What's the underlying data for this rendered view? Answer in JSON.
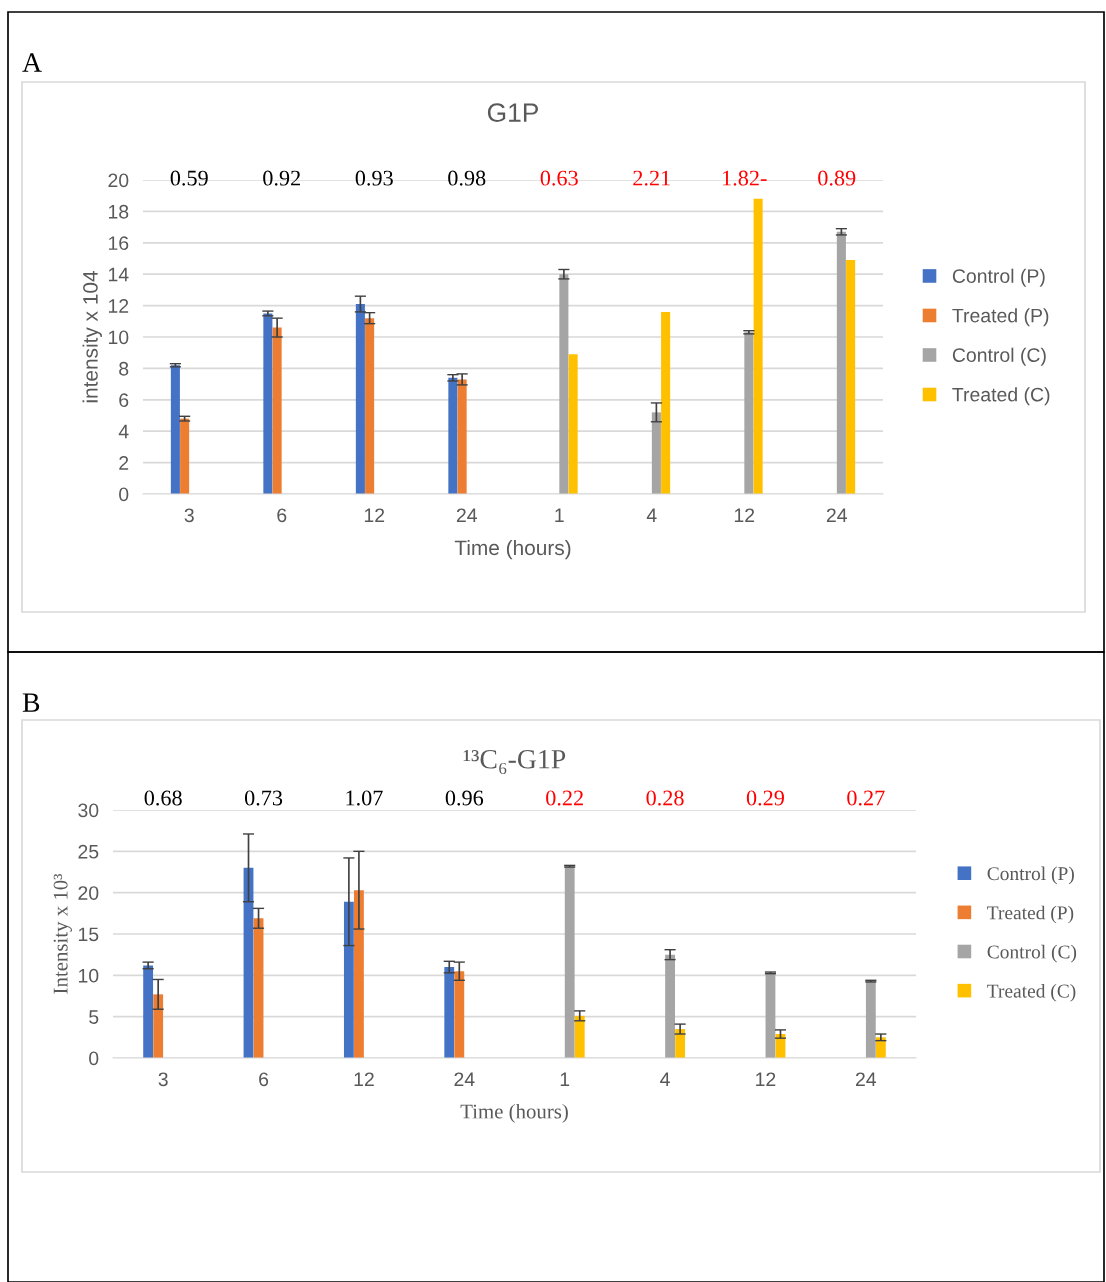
{
  "chart_data": [
    {
      "type": "bar",
      "title": "G1P",
      "xlabel": "Time (hours)",
      "ylabel": "intensity x 104",
      "annotations": [
        "A",
        "0.59",
        "0.92",
        "0.93",
        "0.98",
        "0.63",
        "2.21",
        "1.82-",
        "0.89"
      ],
      "categories": [
        "3",
        "6",
        "12",
        "24",
        "1",
        "4",
        "12",
        "24"
      ],
      "series": [
        {
          "name": "Control (P)",
          "color": "#4472c4",
          "values": [
            8.2,
            11.5,
            12.1,
            7.4,
            null,
            null,
            null,
            null
          ],
          "errors": [
            0.1,
            0.15,
            0.5,
            0.2,
            null,
            null,
            null,
            null
          ]
        },
        {
          "name": "Treated (P)",
          "color": "#ed7d31",
          "values": [
            4.8,
            10.6,
            11.2,
            7.3,
            null,
            null,
            null,
            null
          ],
          "errors": [
            0.15,
            0.6,
            0.35,
            0.35,
            null,
            null,
            null,
            null
          ]
        },
        {
          "name": "Control (C)",
          "color": "#a5a5a5",
          "values": [
            null,
            null,
            null,
            null,
            14.0,
            5.2,
            10.3,
            16.7
          ],
          "errors": [
            null,
            null,
            null,
            null,
            0.3,
            0.6,
            0.1,
            0.2
          ]
        },
        {
          "name": "Treated (C)",
          "color": "#ffc000",
          "values": [
            null,
            null,
            null,
            null,
            8.9,
            11.6,
            18.8,
            14.9
          ]
        }
      ],
      "ylim": [
        0,
        20
      ],
      "yticks": [
        0,
        2,
        4,
        6,
        8,
        10,
        12,
        14,
        16,
        18,
        20
      ],
      "grid": "y",
      "legend": "right"
    },
    {
      "type": "bar",
      "title": "¹³C₆-G1P",
      "xlabel": "Time (hours)",
      "ylabel": "Intensity x 10³",
      "annotations": [
        "B",
        "0.68",
        "0.73",
        "1.07",
        "0.96",
        "0.22",
        "0.28",
        "0.29",
        "0.27"
      ],
      "categories": [
        "3",
        "6",
        "12",
        "24",
        "1",
        "4",
        "12",
        "24"
      ],
      "series": [
        {
          "name": "Control (P)",
          "color": "#4472c4",
          "values": [
            11.2,
            23.0,
            18.9,
            11.0,
            null,
            null,
            null,
            null
          ],
          "errors": [
            0.4,
            4.1,
            5.3,
            0.7,
            null,
            null,
            null,
            null
          ]
        },
        {
          "name": "Treated (P)",
          "color": "#ed7d31",
          "values": [
            7.7,
            16.9,
            20.3,
            10.5,
            null,
            null,
            null,
            null
          ],
          "errors": [
            1.8,
            1.2,
            4.7,
            1.1,
            null,
            null,
            null,
            null
          ]
        },
        {
          "name": "Control (C)",
          "color": "#a5a5a5",
          "values": [
            null,
            null,
            null,
            null,
            23.2,
            12.5,
            10.3,
            9.3
          ],
          "errors": [
            null,
            null,
            null,
            null,
            0.1,
            0.6,
            0.1,
            0.1
          ]
        },
        {
          "name": "Treated (C)",
          "color": "#ffc000",
          "values": [
            null,
            null,
            null,
            null,
            5.1,
            3.5,
            2.9,
            2.5
          ],
          "errors": [
            null,
            null,
            null,
            null,
            0.6,
            0.6,
            0.5,
            0.4
          ]
        }
      ],
      "ylim": [
        0,
        30
      ],
      "yticks": [
        0,
        5,
        10,
        15,
        20,
        25,
        30
      ],
      "grid": "y",
      "legend": "right"
    }
  ]
}
